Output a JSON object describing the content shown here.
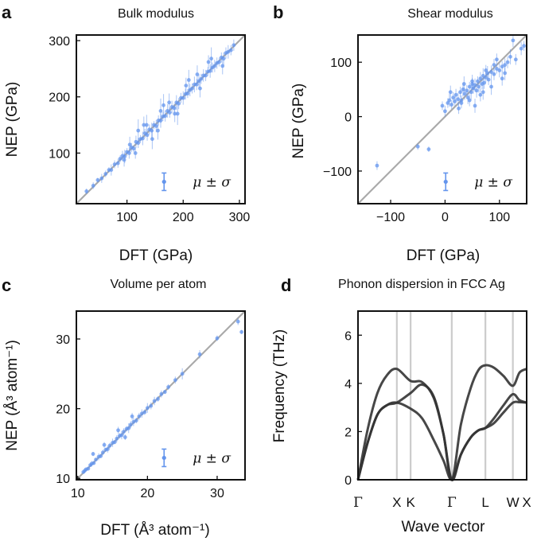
{
  "colors": {
    "points": "#6495ED",
    "diagonal": "#aaaaaa",
    "bands": "#333333",
    "kline": "#cccccc",
    "axis": "#111111"
  },
  "chart_data": [
    {
      "id": "a",
      "type": "scatter",
      "panel_label": "a",
      "title": "Bulk modulus",
      "xlabel": "DFT (GPa)",
      "ylabel": "NEP (GPa)",
      "xlim": [
        10,
        310
      ],
      "ylim": [
        10,
        310
      ],
      "xticks": [
        100,
        200,
        300
      ],
      "yticks": [
        100,
        200,
        300
      ],
      "legend": "μ ± σ",
      "legend_position": "lower-right",
      "diagonal": true,
      "x": [
        28,
        40,
        48,
        55,
        62,
        68,
        72,
        78,
        84,
        88,
        92,
        96,
        100,
        104,
        108,
        112,
        116,
        120,
        124,
        128,
        132,
        136,
        140,
        144,
        148,
        152,
        156,
        160,
        164,
        168,
        172,
        176,
        180,
        184,
        188,
        192,
        196,
        200,
        204,
        208,
        212,
        216,
        220,
        224,
        228,
        232,
        236,
        240,
        244,
        248,
        252,
        256,
        260,
        264,
        268,
        272,
        276,
        280,
        285,
        290,
        120,
        130,
        145,
        160,
        175,
        190,
        210,
        230,
        250,
        270,
        95,
        105,
        115,
        135,
        155,
        165,
        185,
        205,
        225,
        245
      ],
      "y": [
        32,
        42,
        52,
        55,
        63,
        70,
        70,
        80,
        82,
        90,
        95,
        94,
        102,
        100,
        110,
        108,
        120,
        118,
        125,
        126,
        135,
        132,
        142,
        140,
        150,
        148,
        158,
        158,
        165,
        166,
        175,
        172,
        182,
        180,
        190,
        188,
        198,
        198,
        205,
        206,
        212,
        215,
        222,
        222,
        228,
        232,
        238,
        238,
        245,
        246,
        252,
        255,
        260,
        262,
        270,
        268,
        278,
        280,
        283,
        292,
        140,
        150,
        125,
        175,
        190,
        170,
        230,
        215,
        268,
        255,
        88,
        115,
        100,
        150,
        140,
        185,
        170,
        220,
        240,
        262
      ],
      "y_err": [
        5,
        6,
        4,
        8,
        6,
        5,
        10,
        7,
        8,
        6,
        9,
        12,
        7,
        10,
        8,
        6,
        11,
        9,
        7,
        12,
        8,
        10,
        9,
        14,
        7,
        11,
        9,
        13,
        8,
        10,
        12,
        9,
        11,
        8,
        13,
        10,
        9,
        12,
        10,
        8,
        11,
        9,
        14,
        10,
        12,
        9,
        11,
        10,
        8,
        12,
        9,
        11,
        10,
        8,
        9,
        11,
        10,
        12,
        9,
        10,
        20,
        15,
        18,
        22,
        16,
        20,
        18,
        16,
        20,
        15,
        12,
        14,
        10,
        18,
        16,
        20,
        15,
        14,
        16,
        12
      ]
    },
    {
      "id": "b",
      "type": "scatter",
      "panel_label": "b",
      "title": "Shear modulus",
      "xlabel": "DFT (GPa)",
      "ylabel": "NEP (GPa)",
      "xlim": [
        -160,
        150
      ],
      "ylim": [
        -160,
        150
      ],
      "xticks": [
        -100,
        0,
        100
      ],
      "yticks": [
        -100,
        0,
        100
      ],
      "legend": "μ ± σ",
      "legend_position": "lower-right",
      "diagonal": true,
      "x": [
        -125,
        -50,
        -30,
        -5,
        0,
        5,
        8,
        12,
        15,
        18,
        20,
        24,
        28,
        30,
        33,
        36,
        40,
        42,
        45,
        48,
        50,
        52,
        55,
        58,
        60,
        62,
        65,
        68,
        70,
        72,
        75,
        78,
        80,
        85,
        90,
        95,
        100,
        105,
        110,
        115,
        120,
        130,
        140,
        145,
        10,
        25,
        35,
        45,
        55,
        65,
        75,
        85,
        95,
        105,
        30,
        50,
        70,
        90,
        110,
        125
      ],
      "y": [
        -90,
        -55,
        -60,
        20,
        10,
        25,
        30,
        22,
        35,
        28,
        40,
        32,
        45,
        30,
        50,
        42,
        48,
        35,
        55,
        45,
        60,
        52,
        58,
        48,
        65,
        55,
        70,
        60,
        75,
        62,
        72,
        80,
        68,
        82,
        78,
        88,
        85,
        92,
        95,
        100,
        110,
        105,
        125,
        130,
        45,
        15,
        60,
        30,
        20,
        40,
        85,
        55,
        105,
        70,
        25,
        65,
        45,
        95,
        80,
        140
      ],
      "y_err": [
        8,
        6,
        5,
        8,
        10,
        9,
        12,
        8,
        10,
        9,
        11,
        12,
        10,
        9,
        13,
        11,
        10,
        12,
        9,
        14,
        11,
        10,
        12,
        13,
        9,
        11,
        12,
        10,
        14,
        11,
        9,
        13,
        10,
        12,
        11,
        9,
        13,
        10,
        12,
        11,
        14,
        10,
        12,
        9,
        12,
        10,
        14,
        11,
        13,
        12,
        10,
        15,
        11,
        13,
        10,
        12,
        14,
        11,
        13,
        12
      ]
    },
    {
      "id": "c",
      "type": "scatter",
      "panel_label": "c",
      "title": "Volume per atom",
      "xlabel": "DFT (Å³ atom⁻¹)",
      "ylabel": "NEP (Å³ atom⁻¹)",
      "xlim": [
        9.8,
        34
      ],
      "ylim": [
        9.8,
        34
      ],
      "xticks": [
        10,
        20,
        30
      ],
      "yticks": [
        10,
        20,
        30
      ],
      "legend": "μ ± σ",
      "legend_position": "lower-right",
      "diagonal": true,
      "x": [
        10.8,
        11.0,
        11.2,
        11.5,
        11.8,
        12.0,
        12.3,
        12.6,
        13.0,
        13.3,
        13.6,
        14.0,
        14.3,
        14.6,
        15.0,
        15.3,
        15.6,
        16.0,
        16.3,
        16.6,
        17.0,
        17.3,
        17.6,
        18.0,
        18.4,
        18.8,
        19.2,
        19.6,
        20.0,
        20.5,
        21.0,
        21.5,
        22.0,
        22.5,
        23.0,
        24.0,
        25.0,
        27.5,
        30.0,
        33.0,
        33.5,
        12.2,
        13.8,
        15.8,
        16.8,
        17.8
      ],
      "y": [
        10.9,
        11.1,
        11.3,
        11.4,
        11.9,
        12.1,
        12.2,
        12.7,
        13.1,
        13.2,
        13.7,
        14.1,
        14.2,
        14.7,
        15.1,
        15.2,
        15.7,
        16.1,
        16.2,
        16.7,
        17.1,
        17.2,
        17.7,
        18.1,
        18.3,
        18.9,
        19.3,
        19.5,
        20.1,
        20.4,
        21.1,
        21.4,
        22.1,
        22.4,
        23.1,
        24.1,
        25.0,
        27.8,
        30.1,
        32.5,
        31.0,
        13.5,
        14.8,
        16.9,
        15.9,
        18.9
      ],
      "y_err": [
        0.2,
        0.3,
        0.2,
        0.3,
        0.2,
        0.4,
        0.3,
        0.2,
        0.5,
        0.3,
        0.4,
        0.3,
        0.5,
        0.4,
        0.6,
        0.3,
        0.5,
        0.4,
        0.6,
        0.5,
        0.4,
        0.7,
        0.5,
        0.6,
        0.4,
        0.5,
        0.6,
        0.4,
        0.7,
        0.5,
        0.6,
        0.4,
        0.5,
        0.3,
        0.4,
        0.5,
        0.8,
        0.6,
        0.4,
        0.5,
        0.3,
        0.3,
        0.4,
        0.5,
        0.4,
        0.5
      ]
    },
    {
      "id": "d",
      "type": "line",
      "panel_label": "d",
      "title": "Phonon dispersion in FCC Ag",
      "xlabel": "Wave vector",
      "ylabel": "Frequency (THz)",
      "ylim": [
        0,
        7
      ],
      "yticks": [
        0,
        2,
        4,
        6
      ],
      "kpoints": [
        {
          "label": "Γ",
          "x": 0
        },
        {
          "label": "X",
          "x": 1.0
        },
        {
          "label": "K",
          "x": 1.354
        },
        {
          "label": "Γ",
          "x": 2.414
        },
        {
          "label": "L",
          "x": 3.28
        },
        {
          "label": "W",
          "x": 3.987
        },
        {
          "label": "X",
          "x": 4.342
        }
      ],
      "series": [
        {
          "name": "branch-1",
          "x": [
            0,
            0.25,
            0.5,
            0.75,
            1.0,
            1.354,
            1.65,
            1.95,
            2.2,
            2.414,
            2.65,
            2.9,
            3.1,
            3.28,
            3.5,
            3.75,
            3.987,
            4.16,
            4.342
          ],
          "y": [
            0,
            1.55,
            2.7,
            3.1,
            3.2,
            2.95,
            2.55,
            1.65,
            0.8,
            0,
            1.05,
            1.75,
            2.05,
            2.15,
            2.35,
            2.8,
            3.2,
            3.22,
            3.2
          ]
        },
        {
          "name": "branch-2",
          "x": [
            0,
            0.25,
            0.5,
            0.75,
            1.0,
            1.354,
            1.65,
            1.95,
            2.2,
            2.414,
            2.65,
            2.9,
            3.1,
            3.28,
            3.5,
            3.75,
            3.987,
            4.16,
            4.342
          ],
          "y": [
            0,
            1.55,
            2.7,
            3.1,
            3.2,
            3.6,
            3.95,
            3.45,
            1.9,
            0,
            1.05,
            1.75,
            2.05,
            2.15,
            2.55,
            3.1,
            3.55,
            3.3,
            3.2
          ]
        },
        {
          "name": "branch-3",
          "x": [
            0,
            0.25,
            0.5,
            0.75,
            1.0,
            1.354,
            1.65,
            1.95,
            2.2,
            2.414,
            2.65,
            2.9,
            3.1,
            3.28,
            3.5,
            3.75,
            3.987,
            4.16,
            4.342
          ],
          "y": [
            0,
            2.1,
            3.6,
            4.35,
            4.6,
            4.1,
            4.05,
            3.4,
            1.9,
            0,
            2.3,
            3.8,
            4.55,
            4.75,
            4.65,
            4.3,
            3.9,
            4.45,
            4.6
          ]
        }
      ]
    }
  ]
}
